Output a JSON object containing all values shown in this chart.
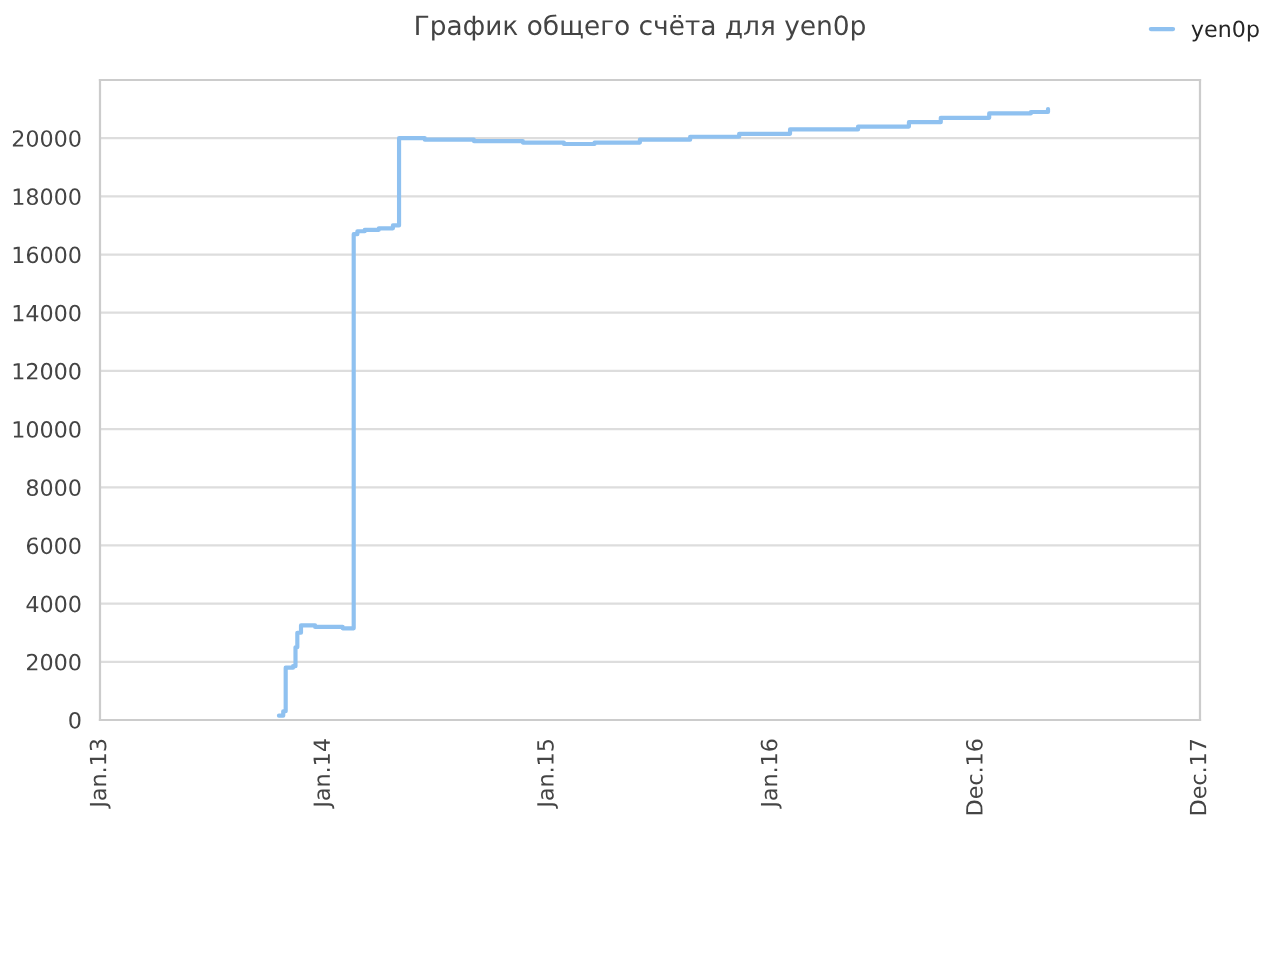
{
  "chart_data": {
    "type": "step",
    "title": "График общего счёта для yen0p",
    "x": [
      "2013-10-20",
      "2013-10-27",
      "2013-10-31",
      "2013-11-12",
      "2013-11-16",
      "2013-11-19",
      "2013-11-25",
      "2013-12-18",
      "2014-02-01",
      "2014-02-19",
      "2014-02-25",
      "2014-03-09",
      "2014-04-01",
      "2014-04-24",
      "2014-05-04",
      "2014-06-15",
      "2014-09-03",
      "2014-11-22",
      "2015-01-28",
      "2015-03-19",
      "2015-06-01",
      "2015-08-22",
      "2015-11-10",
      "2016-02-01",
      "2016-05-22",
      "2016-08-13",
      "2016-10-04",
      "2016-12-22",
      "2017-02-28",
      "2017-03-28"
    ],
    "series": [
      {
        "name": "yen0p",
        "color": "#8fc1f0",
        "values": [
          150,
          300,
          1800,
          1850,
          2500,
          3000,
          3250,
          3200,
          3150,
          16700,
          16800,
          16850,
          16900,
          17000,
          20000,
          19950,
          19900,
          19850,
          19800,
          19850,
          19950,
          20050,
          20150,
          20300,
          20400,
          20550,
          20700,
          20850,
          20900,
          21000
        ]
      }
    ],
    "xlim": [
      "2013-01-01",
      "2017-12-01"
    ],
    "xticks": [
      {
        "value": "2013-01-01",
        "label": "Jan.13"
      },
      {
        "value": "2014-01-01",
        "label": "Jan.14"
      },
      {
        "value": "2015-01-01",
        "label": "Jan.15"
      },
      {
        "value": "2016-01-01",
        "label": "Jan.16"
      },
      {
        "value": "2016-12-01",
        "label": "Dec.16"
      },
      {
        "value": "2017-12-01",
        "label": "Dec.17"
      }
    ],
    "ylim": [
      0,
      22000
    ],
    "yticks": [
      0,
      2000,
      4000,
      6000,
      8000,
      10000,
      12000,
      14000,
      16000,
      18000,
      20000
    ],
    "grid": "y",
    "legend": "top right",
    "marker": "none",
    "line_style": "solid"
  }
}
